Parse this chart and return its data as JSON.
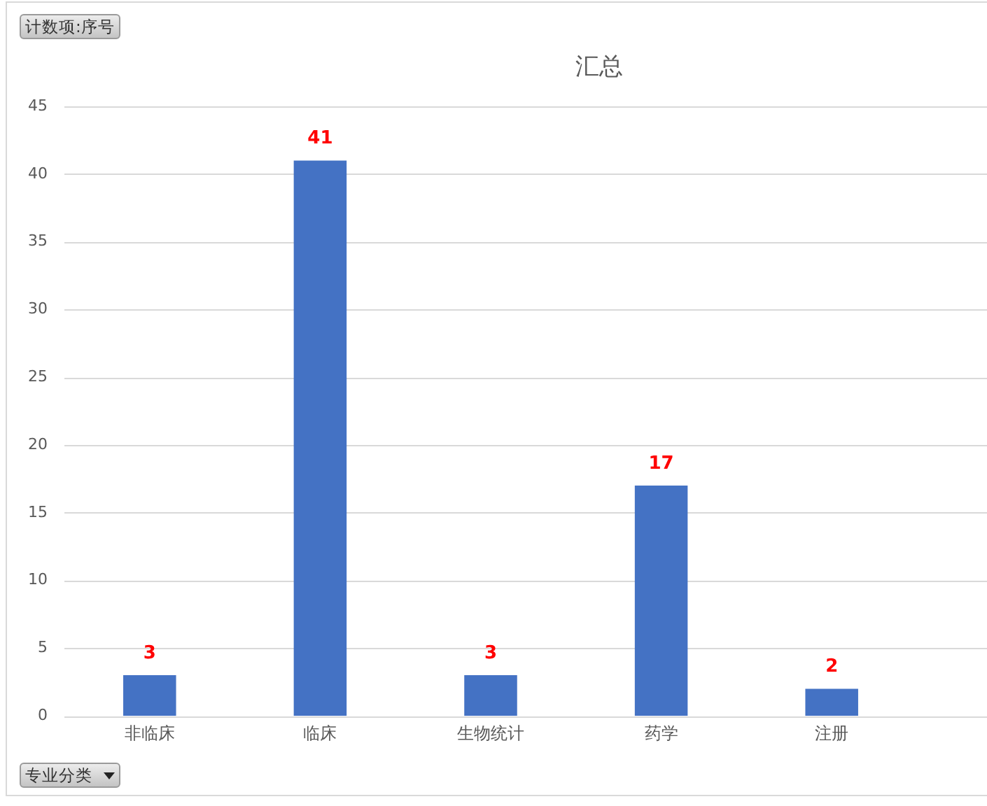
{
  "chart_data": {
    "type": "bar",
    "title": "汇总",
    "categories": [
      "非临床",
      "临床",
      "生物统计",
      "药学",
      "注册"
    ],
    "values": [
      3,
      41,
      3,
      17,
      2
    ],
    "color": "#4472c4",
    "ylim": [
      0,
      45
    ],
    "yticks": [
      0,
      5,
      10,
      15,
      20,
      25,
      30,
      35,
      40,
      45
    ],
    "grid": "y",
    "data_labels": true,
    "annotations": [
      "计数项:序号",
      "专业分类"
    ]
  }
}
